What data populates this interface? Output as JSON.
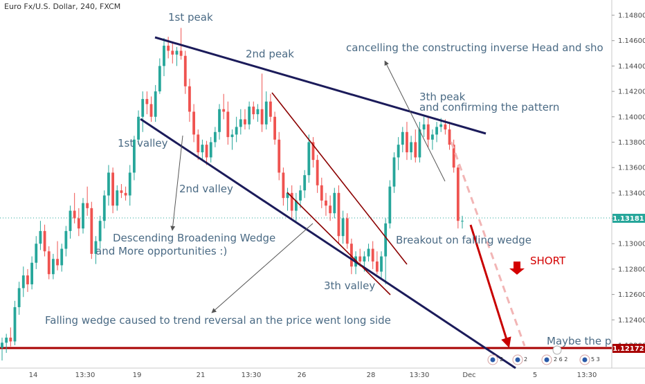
{
  "header": {
    "title": "Euro Fx/U.S. Dollar, 240, FXCM"
  },
  "axis": {
    "y_ticks": [
      "1.14800",
      "1.14600",
      "1.14400",
      "1.14200",
      "1.14000",
      "1.13800",
      "1.13600",
      "1.13400",
      "1.13200",
      "1.13000",
      "1.12800",
      "1.12600",
      "1.12400",
      "1.12200"
    ],
    "x_ticks": [
      "14",
      "13:30",
      "19",
      "21",
      "13:30",
      "26",
      "28",
      "13:30",
      "Dec",
      "5",
      "13:30"
    ],
    "ylim": [
      1.1202,
      1.1492
    ]
  },
  "price_labels": {
    "current": "1.13181",
    "support": "1.12172"
  },
  "colors": {
    "up": "#26a69a",
    "down": "#ef5350",
    "wedge": "#1b1b5a",
    "channel": "#8b0000",
    "support": "#a80000",
    "price_line": "#26a69a",
    "annotation": "#4a6a84"
  },
  "annotations": {
    "peak1": "1st peak",
    "peak2": "2nd peak",
    "peak3": "3th peak",
    "confirm": "and confirming  the pattern",
    "cancel": "cancelling the constructing inverse Head and sho",
    "valley1": "1st valley",
    "valley2": "2nd valley",
    "valley3": "3th valley",
    "descending1": "Descending Broadening Wedge",
    "descending2": "and More opportunities  :)",
    "falling": "Falling wedge caused to trend reversal an the price went long side",
    "breakout": "Breakout on falling wedge",
    "short": "SHORT",
    "maybe": "Maybe the p"
  },
  "events": [
    "2",
    "2",
    "2 6 2",
    "5 3"
  ],
  "chart_data": {
    "type": "candlestick",
    "title": "Euro Fx/U.S. Dollar, 240, FXCM",
    "ylim": [
      1.1202,
      1.1492
    ],
    "candles": [
      [
        1.1218,
        1.1226,
        1.1208,
        1.1222
      ],
      [
        1.1222,
        1.1229,
        1.1214,
        1.1226
      ],
      [
        1.1226,
        1.1234,
        1.1219,
        1.1223
      ],
      [
        1.1223,
        1.1255,
        1.122,
        1.125
      ],
      [
        1.125,
        1.127,
        1.1244,
        1.1265
      ],
      [
        1.1265,
        1.1282,
        1.1258,
        1.1275
      ],
      [
        1.1275,
        1.128,
        1.1262,
        1.1268
      ],
      [
        1.1268,
        1.129,
        1.1264,
        1.1285
      ],
      [
        1.1285,
        1.1306,
        1.128,
        1.13
      ],
      [
        1.13,
        1.1318,
        1.1295,
        1.131
      ],
      [
        1.131,
        1.1315,
        1.129,
        1.1294
      ],
      [
        1.1294,
        1.1298,
        1.1272,
        1.1276
      ],
      [
        1.1276,
        1.1292,
        1.1272,
        1.1288
      ],
      [
        1.1288,
        1.1302,
        1.1279,
        1.1283
      ],
      [
        1.1283,
        1.13,
        1.1278,
        1.1296
      ],
      [
        1.1296,
        1.1314,
        1.129,
        1.131
      ],
      [
        1.131,
        1.133,
        1.1304,
        1.1326
      ],
      [
        1.1326,
        1.134,
        1.1316,
        1.132
      ],
      [
        1.132,
        1.1328,
        1.1306,
        1.1312
      ],
      [
        1.1312,
        1.1336,
        1.1308,
        1.1332
      ],
      [
        1.1332,
        1.1345,
        1.1322,
        1.1328
      ],
      [
        1.1328,
        1.1333,
        1.1288,
        1.1292
      ],
      [
        1.1292,
        1.1306,
        1.1284,
        1.1302
      ],
      [
        1.1302,
        1.1322,
        1.1296,
        1.1318
      ],
      [
        1.1318,
        1.1342,
        1.1312,
        1.1338
      ],
      [
        1.1338,
        1.1362,
        1.133,
        1.1356
      ],
      [
        1.1356,
        1.136,
        1.1324,
        1.133
      ],
      [
        1.133,
        1.1346,
        1.1326,
        1.1342
      ],
      [
        1.1342,
        1.1347,
        1.1336,
        1.134
      ],
      [
        1.134,
        1.1345,
        1.1334,
        1.1338
      ],
      [
        1.1338,
        1.1362,
        1.133,
        1.1356
      ],
      [
        1.1356,
        1.1385,
        1.135,
        1.1382
      ],
      [
        1.1382,
        1.1405,
        1.1378,
        1.14
      ],
      [
        1.14,
        1.142,
        1.1388,
        1.1414
      ],
      [
        1.1414,
        1.142,
        1.1402,
        1.141
      ],
      [
        1.141,
        1.1416,
        1.1396,
        1.14
      ],
      [
        1.14,
        1.1425,
        1.1396,
        1.142
      ],
      [
        1.142,
        1.1446,
        1.1418,
        1.144
      ],
      [
        1.144,
        1.1462,
        1.1432,
        1.1456
      ],
      [
        1.1456,
        1.1463,
        1.1446,
        1.1452
      ],
      [
        1.1452,
        1.1458,
        1.1442,
        1.1449
      ],
      [
        1.1449,
        1.1455,
        1.144,
        1.1452
      ],
      [
        1.1452,
        1.147,
        1.1445,
        1.1448
      ],
      [
        1.1448,
        1.1452,
        1.1418,
        1.1424
      ],
      [
        1.1424,
        1.143,
        1.1396,
        1.1404
      ],
      [
        1.1404,
        1.141,
        1.138,
        1.1386
      ],
      [
        1.1386,
        1.139,
        1.1366,
        1.1372
      ],
      [
        1.1372,
        1.1382,
        1.1365,
        1.1378
      ],
      [
        1.1378,
        1.1381,
        1.1362,
        1.1368
      ],
      [
        1.1368,
        1.1384,
        1.1364,
        1.138
      ],
      [
        1.138,
        1.1392,
        1.1376,
        1.1388
      ],
      [
        1.1388,
        1.141,
        1.1382,
        1.1406
      ],
      [
        1.1406,
        1.1418,
        1.1398,
        1.1404
      ],
      [
        1.1404,
        1.1412,
        1.1378,
        1.1384
      ],
      [
        1.1384,
        1.139,
        1.1374,
        1.1386
      ],
      [
        1.1386,
        1.14,
        1.138,
        1.1392
      ],
      [
        1.1392,
        1.1406,
        1.1386,
        1.1398
      ],
      [
        1.1398,
        1.1406,
        1.139,
        1.1394
      ],
      [
        1.1394,
        1.1412,
        1.139,
        1.1408
      ],
      [
        1.1408,
        1.1412,
        1.1398,
        1.1402
      ],
      [
        1.1402,
        1.141,
        1.1396,
        1.1406
      ],
      [
        1.1406,
        1.1434,
        1.1388,
        1.1394
      ],
      [
        1.1394,
        1.142,
        1.139,
        1.1412
      ],
      [
        1.1412,
        1.1418,
        1.1396,
        1.14
      ],
      [
        1.14,
        1.1404,
        1.1378,
        1.1382
      ],
      [
        1.1382,
        1.1388,
        1.135,
        1.1356
      ],
      [
        1.1356,
        1.136,
        1.133,
        1.1336
      ],
      [
        1.1336,
        1.1344,
        1.1326,
        1.134
      ],
      [
        1.134,
        1.1346,
        1.132,
        1.1326
      ],
      [
        1.1326,
        1.134,
        1.1318,
        1.1334
      ],
      [
        1.1334,
        1.1346,
        1.1328,
        1.1342
      ],
      [
        1.1342,
        1.1358,
        1.1336,
        1.1354
      ],
      [
        1.1354,
        1.1386,
        1.1348,
        1.138
      ],
      [
        1.138,
        1.1384,
        1.136,
        1.1366
      ],
      [
        1.1366,
        1.137,
        1.134,
        1.1346
      ],
      [
        1.1346,
        1.1352,
        1.1328,
        1.1334
      ],
      [
        1.1334,
        1.134,
        1.1322,
        1.133
      ],
      [
        1.133,
        1.1338,
        1.1318,
        1.1324
      ],
      [
        1.1324,
        1.1344,
        1.132,
        1.134
      ],
      [
        1.134,
        1.1346,
        1.13,
        1.1306
      ],
      [
        1.1306,
        1.1326,
        1.13,
        1.132
      ],
      [
        1.132,
        1.1324,
        1.1296,
        1.13
      ],
      [
        1.13,
        1.1304,
        1.1276,
        1.1282
      ],
      [
        1.1282,
        1.1294,
        1.1276,
        1.129
      ],
      [
        1.129,
        1.1296,
        1.1282,
        1.1286
      ],
      [
        1.1286,
        1.1294,
        1.1278,
        1.129
      ],
      [
        1.129,
        1.13,
        1.1286,
        1.1296
      ],
      [
        1.1296,
        1.1302,
        1.128,
        1.1286
      ],
      [
        1.1286,
        1.1294,
        1.1276,
        1.1278
      ],
      [
        1.1278,
        1.1294,
        1.1272,
        1.129
      ],
      [
        1.129,
        1.132,
        1.1268,
        1.1316
      ],
      [
        1.1316,
        1.135,
        1.1312,
        1.1345
      ],
      [
        1.1345,
        1.1372,
        1.134,
        1.1368
      ],
      [
        1.1368,
        1.1384,
        1.1358,
        1.1378
      ],
      [
        1.1378,
        1.1392,
        1.1372,
        1.1388
      ],
      [
        1.1388,
        1.1396,
        1.1366,
        1.1372
      ],
      [
        1.1372,
        1.1385,
        1.1366,
        1.138
      ],
      [
        1.138,
        1.139,
        1.1364,
        1.1368
      ],
      [
        1.1368,
        1.1396,
        1.1364,
        1.139
      ],
      [
        1.139,
        1.14,
        1.1384,
        1.1394
      ],
      [
        1.1394,
        1.14,
        1.1376,
        1.1382
      ],
      [
        1.1382,
        1.139,
        1.1374,
        1.1386
      ],
      [
        1.1386,
        1.1396,
        1.138,
        1.1392
      ],
      [
        1.1392,
        1.1399,
        1.1388,
        1.1394
      ],
      [
        1.1394,
        1.1398,
        1.1386,
        1.139
      ],
      [
        1.139,
        1.1396,
        1.1374,
        1.1378
      ],
      [
        1.1378,
        1.1382,
        1.1356,
        1.136
      ],
      [
        1.136,
        1.1362,
        1.1312,
        1.1318
      ],
      [
        1.1318,
        1.1322,
        1.1312,
        1.1318
      ]
    ],
    "support_level": 1.12172,
    "current_price": 1.13181,
    "projection": {
      "from": 1.1318,
      "to": 1.121
    }
  }
}
